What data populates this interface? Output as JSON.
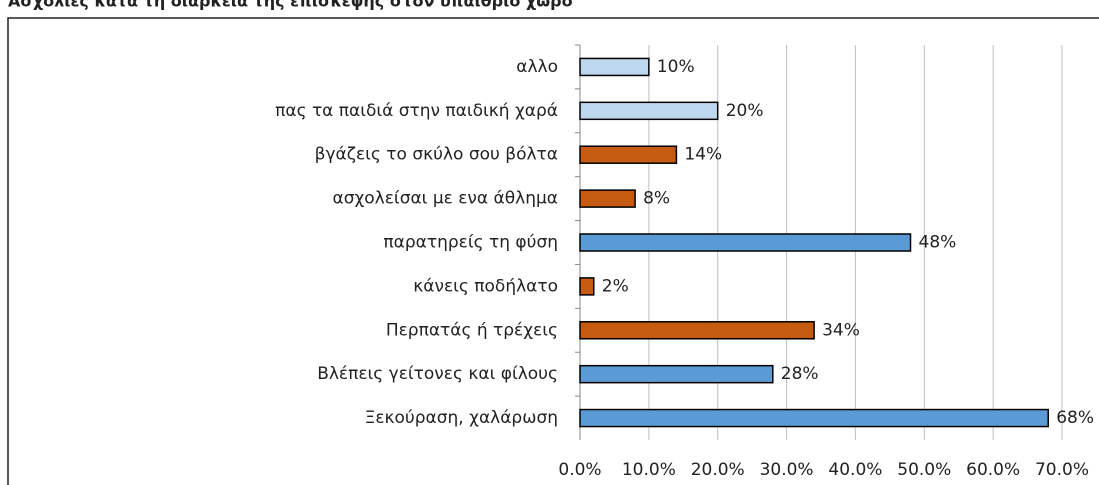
{
  "chart_data": {
    "type": "bar",
    "orientation": "horizontal",
    "title": "Ασχολίες κατά τη διάρκεια της επίσκεψης στον υπαίθριο χώρο",
    "categories": [
      "αλλο",
      "πας τα παιδιά στην παιδική χαρά",
      "βγάζεις το σκύλο σου βόλτα",
      "ασχολείσαι με ενα άθλημα",
      "παρατηρείς τη φύση",
      "κάνεις ποδήλατο",
      "Περπατάς ή τρέχεις",
      "Βλέπεις γείτονες και φίλους",
      "Ξεκούραση, χαλάρωση"
    ],
    "values": [
      10,
      20,
      14,
      8,
      48,
      2,
      34,
      28,
      68
    ],
    "value_labels": [
      "10%",
      "20%",
      "14%",
      "8%",
      "48%",
      "2%",
      "34%",
      "28%",
      "68%"
    ],
    "colors": [
      "#bdd7ee",
      "#bdd7ee",
      "#c55a11",
      "#c55a11",
      "#5b9bd5",
      "#c55a11",
      "#c55a11",
      "#5b9bd5",
      "#5b9bd5"
    ],
    "xlim": [
      0,
      70
    ],
    "xticks": [
      {
        "value": 0,
        "label": "0.0%"
      },
      {
        "value": 10,
        "label": "10.0%"
      },
      {
        "value": 20,
        "label": "20.0%"
      },
      {
        "value": 30,
        "label": "30.0%"
      },
      {
        "value": 40,
        "label": "40.0%"
      },
      {
        "value": 50,
        "label": "50.0%"
      },
      {
        "value": 60,
        "label": "60.0%"
      },
      {
        "value": 70,
        "label": "70.0%"
      }
    ],
    "grid": true
  }
}
